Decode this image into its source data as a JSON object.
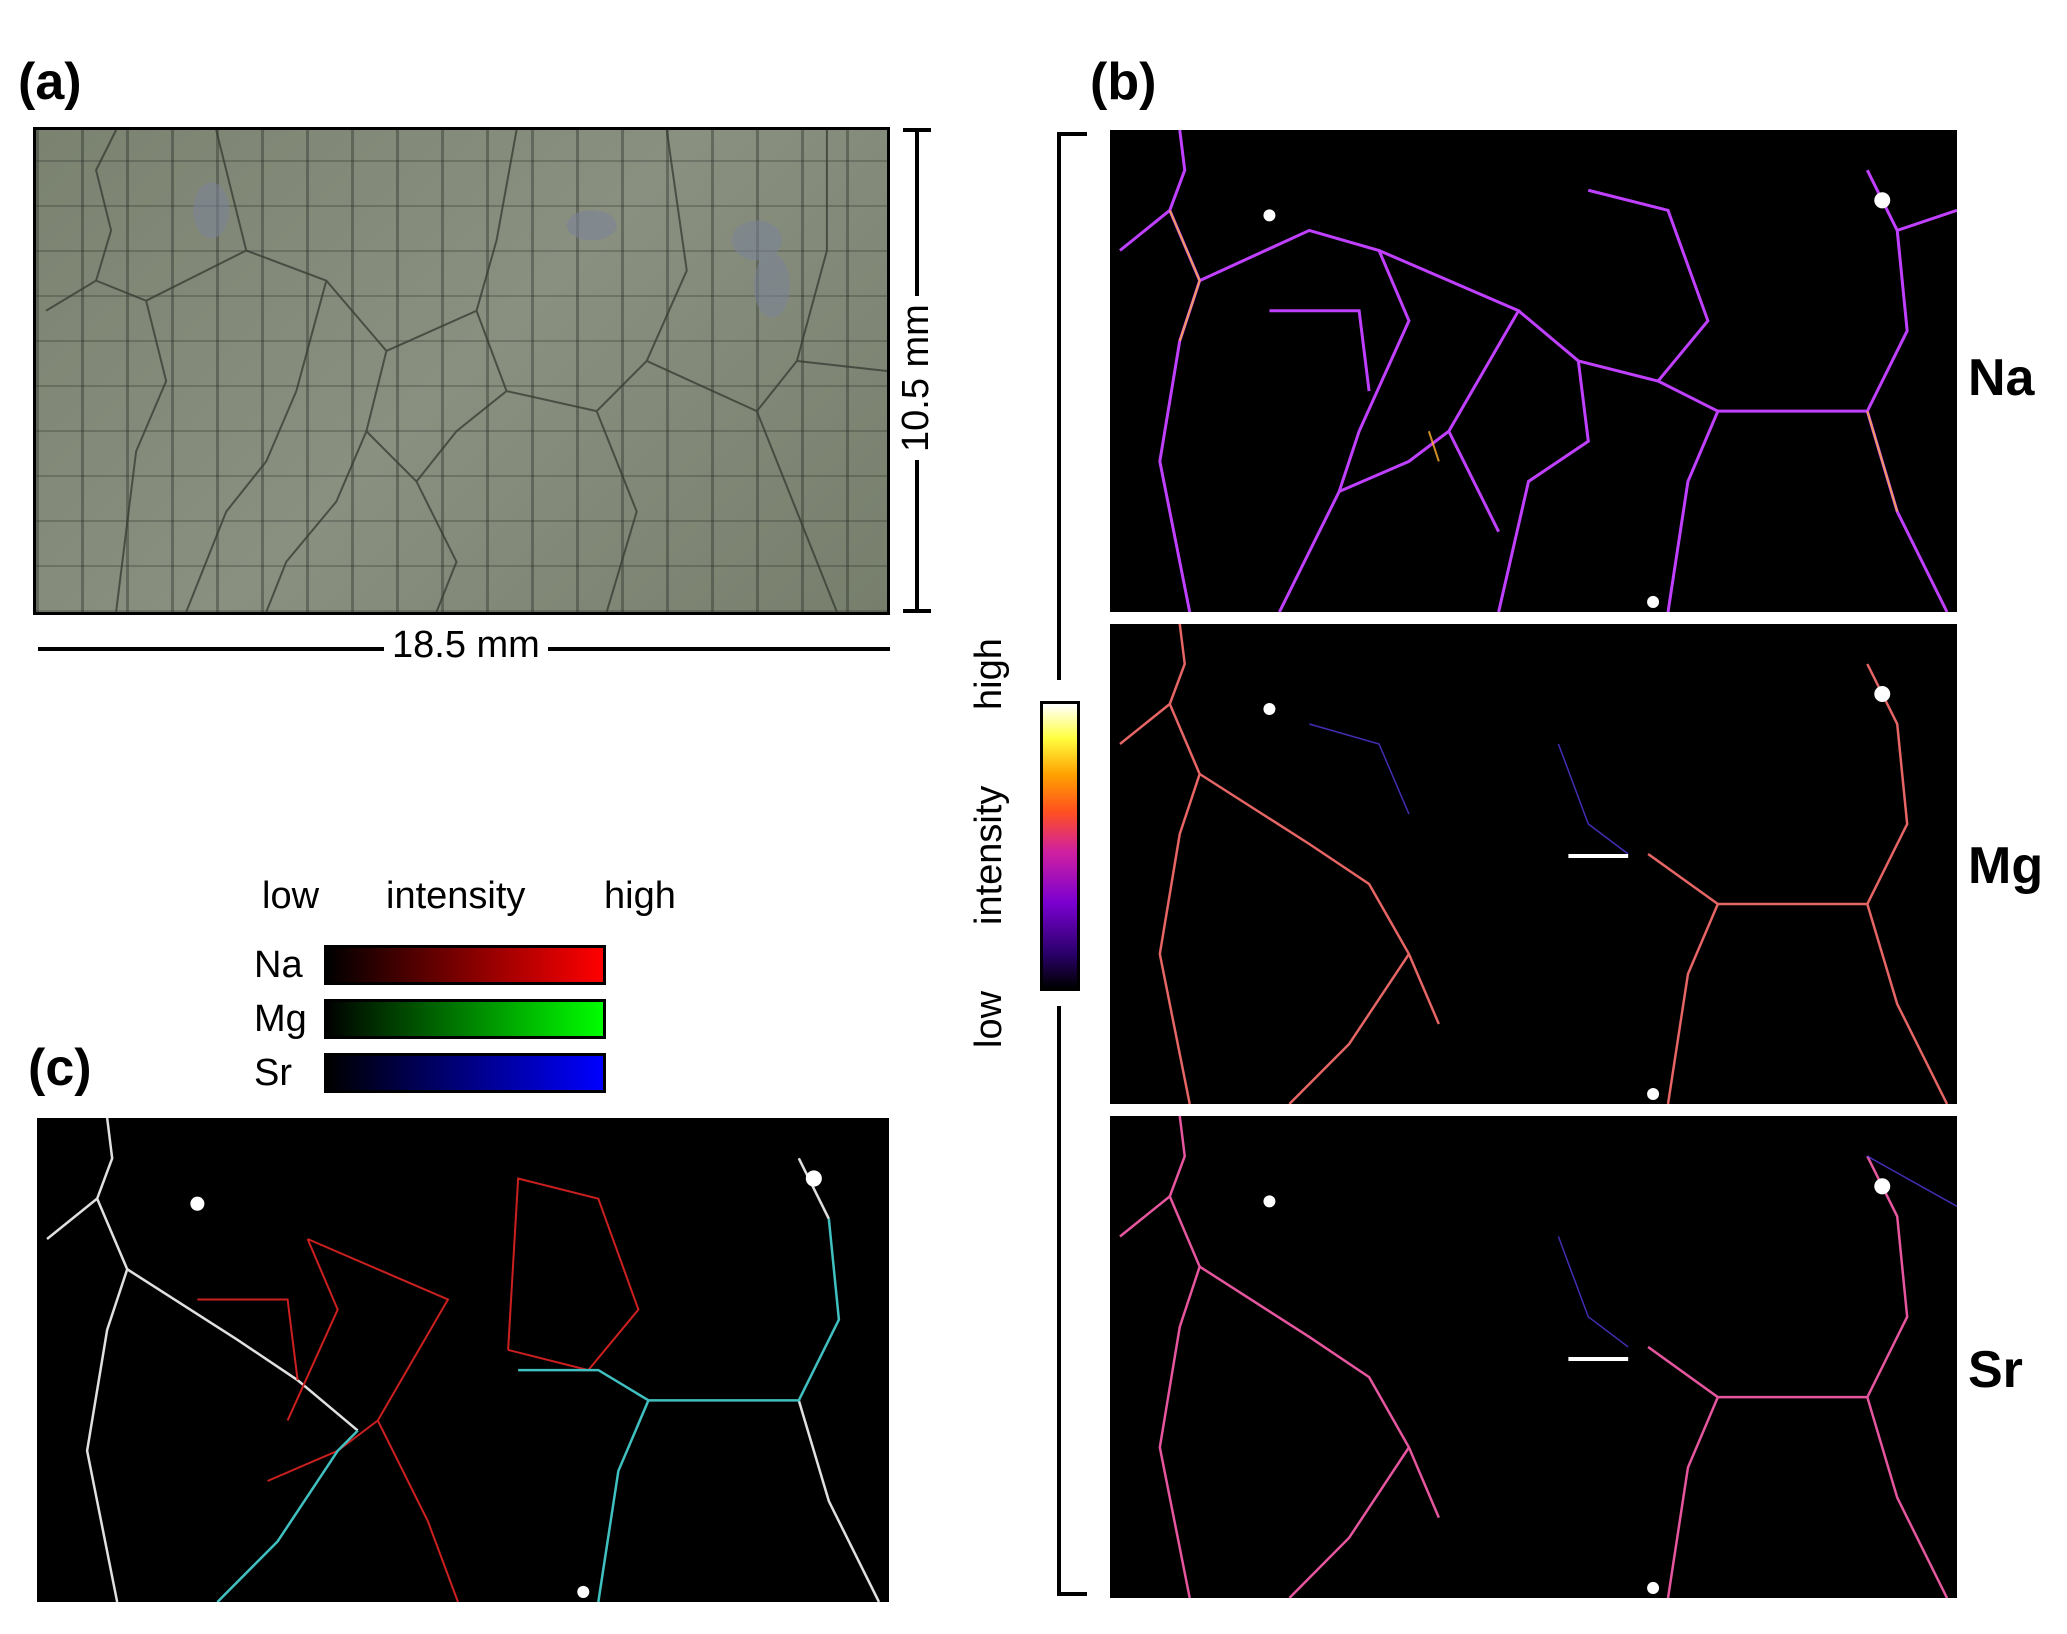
{
  "panels": {
    "a": {
      "label": "(a)"
    },
    "b": {
      "label": "(b)"
    },
    "c": {
      "label": "(c)"
    }
  },
  "scale": {
    "width_label": "18.5 mm",
    "height_label": "10.5 mm"
  },
  "maps": [
    {
      "element": "Na"
    },
    {
      "element": "Mg"
    },
    {
      "element": "Sr"
    }
  ],
  "colorbar": {
    "low": "low",
    "title": "intensity",
    "high": "high"
  },
  "rgb_legend": {
    "low": "low",
    "title": "intensity",
    "high": "high",
    "rows": [
      {
        "element": "Na",
        "color": "#ff0000"
      },
      {
        "element": "Mg",
        "color": "#00ff00"
      },
      {
        "element": "Sr",
        "color": "#0000ff"
      }
    ]
  }
}
